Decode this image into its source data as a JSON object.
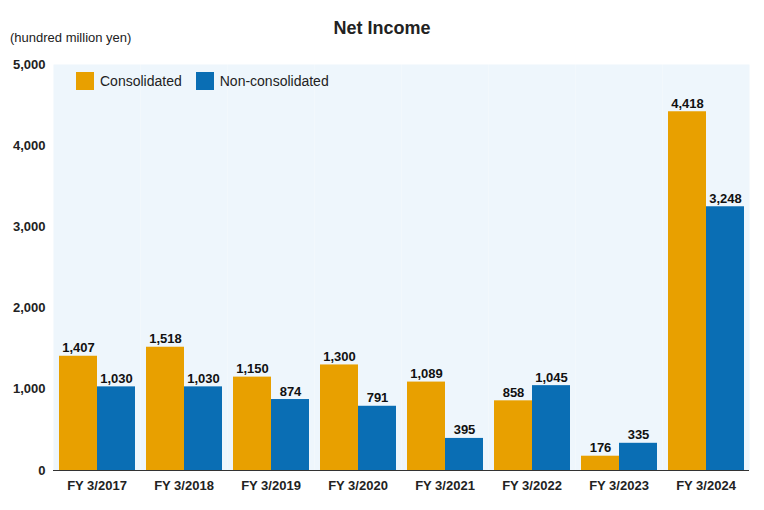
{
  "chart_data": {
    "type": "bar",
    "title": "Net Income",
    "ylabel": "(hundred million yen)",
    "categories": [
      "FY 3/2017",
      "FY 3/2018",
      "FY 3/2019",
      "FY 3/2020",
      "FY 3/2021",
      "FY 3/2022",
      "FY 3/2023",
      "FY 3/2024"
    ],
    "series": [
      {
        "name": "Consolidated",
        "color": "#e8a000",
        "values": [
          1407,
          1518,
          1150,
          1300,
          1089,
          858,
          176,
          4418
        ],
        "value_labels": [
          "1,407",
          "1,518",
          "1,150",
          "1,300",
          "1,089",
          "858",
          "176",
          "4,418"
        ]
      },
      {
        "name": "Non-consolidated",
        "color": "#0a6eb4",
        "values": [
          1030,
          1030,
          874,
          791,
          395,
          1045,
          335,
          3248
        ],
        "value_labels": [
          "1,030",
          "1,030",
          "874",
          "791",
          "395",
          "1,045",
          "335",
          "3,248"
        ]
      }
    ],
    "ylim": [
      0,
      5000
    ],
    "yticks": [
      0,
      {
        "value": 1000,
        "label": "1,000"
      },
      {
        "value": 2000,
        "label": "2,000"
      },
      {
        "value": 3000,
        "label": "3,000"
      },
      {
        "value": 4000,
        "label": "4,000"
      },
      {
        "value": 5000,
        "label": "5,000"
      }
    ],
    "grid": false,
    "data_labels": true,
    "legend": "upper left"
  }
}
